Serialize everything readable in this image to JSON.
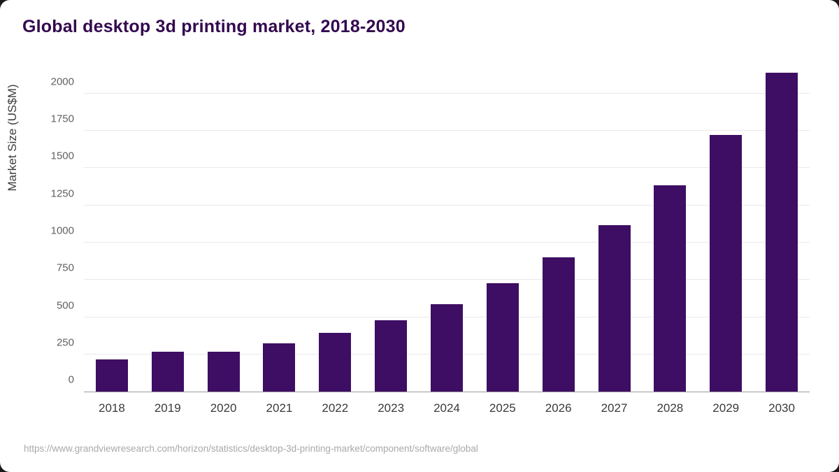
{
  "title": "Global desktop 3d printing market, 2018-2030",
  "footer": {
    "source_url": "https://www.grandviewresearch.com/horizon/statistics/desktop-3d-printing-market/component/software/global"
  },
  "colors": {
    "bar": "#3d0e63",
    "title": "#33084f",
    "gridline": "#e9e9e9",
    "axis_line": "#9a9a9a",
    "tick_text": "#616161",
    "x_tick_text": "#3a3a3a",
    "footer_text": "#a9a9a9"
  },
  "chart_data": {
    "type": "bar",
    "title": "Global desktop 3d printing market, 2018-2030",
    "categories": [
      "2018",
      "2019",
      "2020",
      "2021",
      "2022",
      "2023",
      "2024",
      "2025",
      "2026",
      "2027",
      "2028",
      "2029",
      "2030"
    ],
    "values": [
      218,
      266,
      267,
      325,
      396,
      481,
      589,
      729,
      901,
      1117,
      1387,
      1721,
      2143
    ],
    "xlabel": "",
    "ylabel": "Market Size (US$M)",
    "ylim": [
      0,
      2150
    ],
    "yticks": [
      0,
      250,
      500,
      750,
      1000,
      1250,
      1500,
      1750,
      2000
    ],
    "grid": true,
    "legend": "none",
    "bar_color": "#3d0e63"
  }
}
